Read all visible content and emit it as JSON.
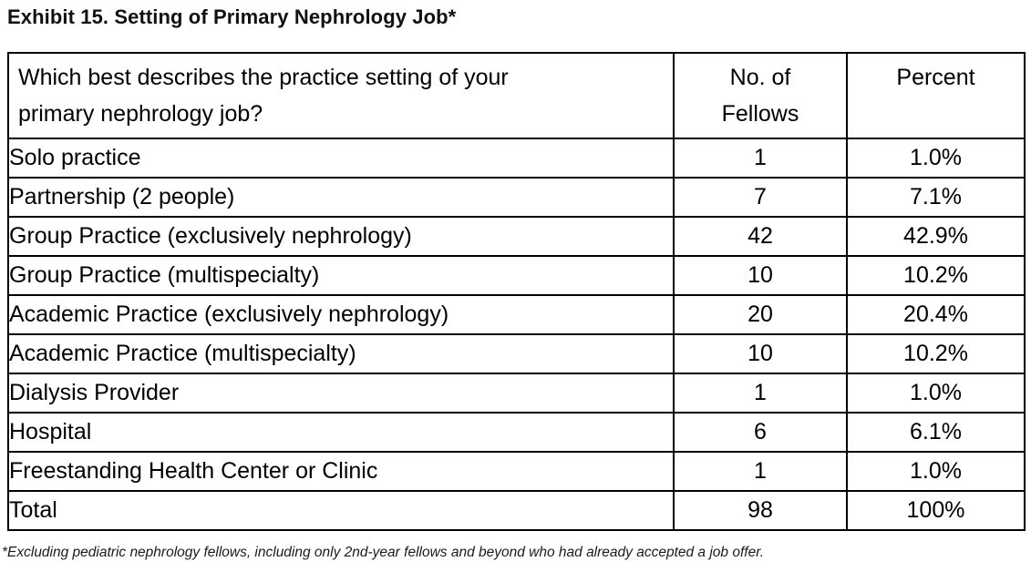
{
  "title": "Exhibit 15. Setting of Primary Nephrology Job*",
  "table": {
    "headers": {
      "question": "Which best describes the practice setting of your primary nephrology job?",
      "count": "No. of Fellows",
      "percent": "Percent"
    },
    "rows": [
      {
        "label": "Solo practice",
        "count": "1",
        "percent": "1.0%"
      },
      {
        "label": "Partnership (2 people)",
        "count": "7",
        "percent": "7.1%"
      },
      {
        "label": "Group Practice (exclusively nephrology)",
        "count": "42",
        "percent": "42.9%"
      },
      {
        "label": "Group Practice (multispecialty)",
        "count": "10",
        "percent": "10.2%"
      },
      {
        "label": "Academic Practice (exclusively nephrology)",
        "count": "20",
        "percent": "20.4%"
      },
      {
        "label": "Academic Practice (multispecialty)",
        "count": "10",
        "percent": "10.2%"
      },
      {
        "label": "Dialysis Provider",
        "count": "1",
        "percent": "1.0%"
      },
      {
        "label": "Hospital",
        "count": "6",
        "percent": "6.1%"
      },
      {
        "label": "Freestanding Health Center or Clinic",
        "count": "1",
        "percent": "1.0%"
      },
      {
        "label": "Total",
        "count": "98",
        "percent": "100%"
      }
    ]
  },
  "footnote": "*Excluding pediatric nephrology fellows, including only 2nd-year fellows and beyond who had already accepted a job offer.",
  "colors": {
    "text": "#000000",
    "border": "#000000",
    "background": "#ffffff"
  }
}
